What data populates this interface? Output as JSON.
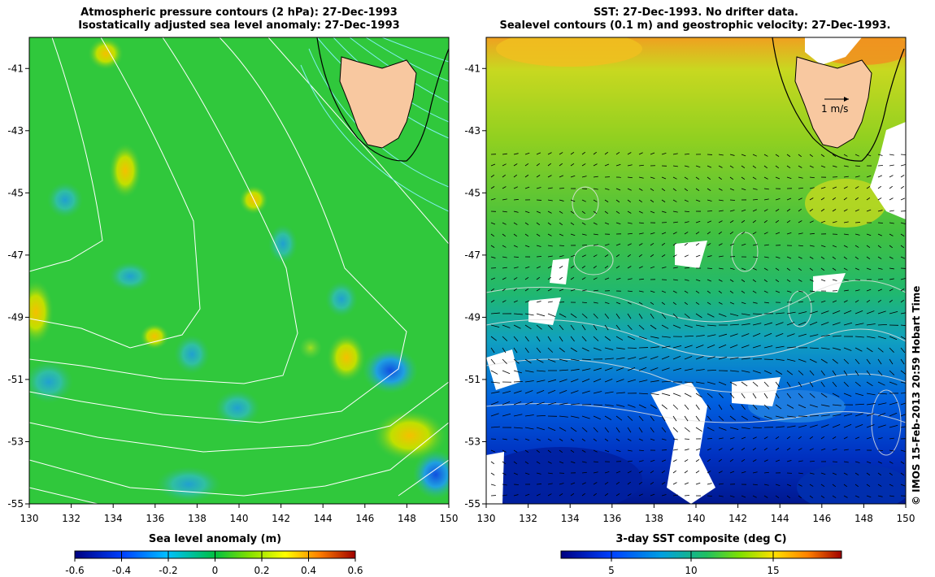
{
  "left_panel": {
    "title_line1": "Atmospheric pressure contours (2 hPa): 27-Dec-1993",
    "title_line2": "Isostatically adjusted sea level anomaly: 27-Dec-1993",
    "colorbar_label": "Sea level anomaly (m)",
    "colorbar_ticks": [
      "-0.6",
      "-0.4",
      "-0.2",
      "0",
      "0.2",
      "0.4",
      "0.6"
    ]
  },
  "right_panel": {
    "title_line1": "SST: 27-Dec-1993. No drifter data.",
    "title_line2": "Sealevel contours (0.1 m) and geostrophic velocity: 27-Dec-1993.",
    "colorbar_label": "3-day SST composite (deg C)",
    "colorbar_ticks": [
      "5",
      "10",
      "15"
    ],
    "velocity_scale_label": "1 m/s"
  },
  "axes": {
    "x_ticks": [
      "130",
      "132",
      "134",
      "136",
      "138",
      "140",
      "142",
      "144",
      "146",
      "148",
      "150"
    ],
    "y_ticks": [
      "-41",
      "-43",
      "-45",
      "-47",
      "-49",
      "-51",
      "-53",
      "-55"
    ],
    "lon_range": [
      130,
      150
    ],
    "lat_range": [
      -40,
      -55
    ]
  },
  "credit": "© IMOS 15-Feb-2013 20:59 Hobart Time",
  "colors": {
    "land": "#f8c8a0",
    "slc_green": "#22c43c",
    "sst_green": "#3cc03c"
  }
}
